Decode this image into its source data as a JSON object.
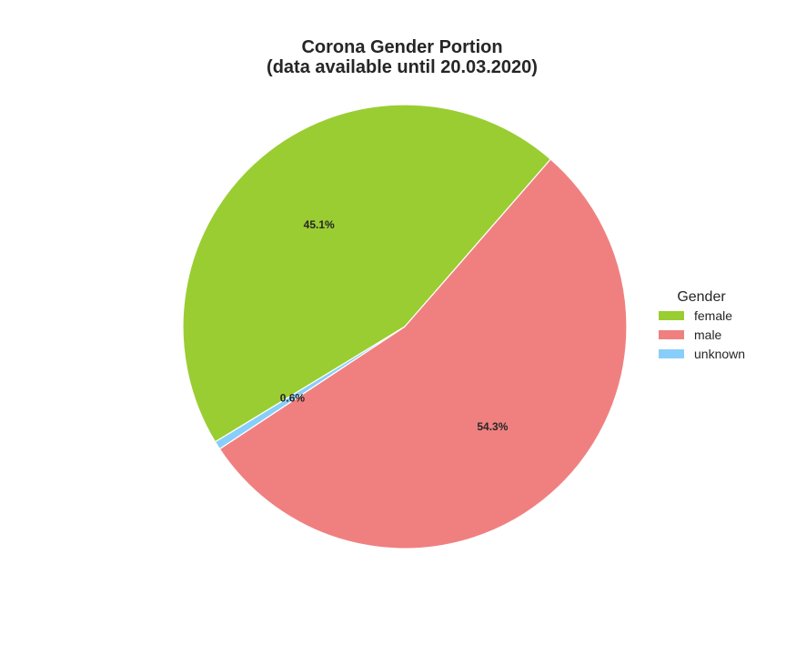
{
  "chart_data": {
    "type": "pie",
    "title_lines": [
      "Corona Gender Portion",
      "(data available until 20.03.2020)"
    ],
    "categories": [
      "female",
      "male",
      "unknown"
    ],
    "values": [
      45.1,
      54.3,
      0.6
    ],
    "labels": [
      "45.1%",
      "54.3%",
      "0.6%"
    ],
    "colors": [
      "#9acd32",
      "#f08080",
      "#87cefa"
    ],
    "legend": {
      "title": "Gender",
      "placement": "right",
      "entries": [
        "female",
        "male",
        "unknown"
      ]
    }
  }
}
